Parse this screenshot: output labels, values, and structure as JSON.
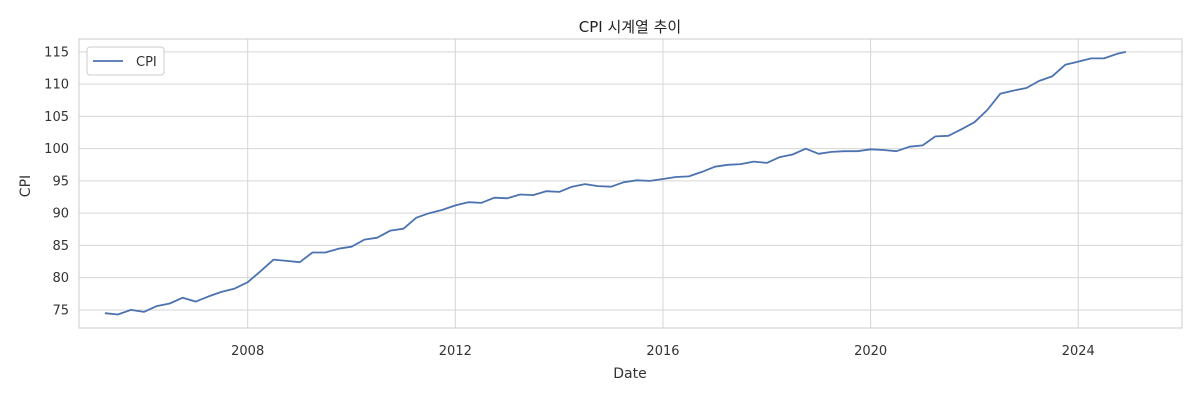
{
  "chart_data": {
    "type": "line",
    "title": "CPI 시계열 추이",
    "xlabel": "Date",
    "ylabel": "CPI",
    "x_range": [
      "2004-10-01",
      "2025-12-31"
    ],
    "ylim": [
      72.2,
      117
    ],
    "x_ticks": [
      {
        "date": "2008-01-01",
        "label": "2008"
      },
      {
        "date": "2012-01-01",
        "label": "2012"
      },
      {
        "date": "2016-01-01",
        "label": "2016"
      },
      {
        "date": "2020-01-01",
        "label": "2020"
      },
      {
        "date": "2024-01-01",
        "label": "2024"
      }
    ],
    "y_ticks": [
      75,
      80,
      85,
      90,
      95,
      100,
      105,
      110,
      115
    ],
    "grid": true,
    "legend": {
      "position": "top-left",
      "entries": [
        "CPI"
      ]
    },
    "series": [
      {
        "name": "CPI",
        "color": "#4c72b0",
        "points": [
          [
            "2005-04-01",
            74.5
          ],
          [
            "2005-07-01",
            74.3
          ],
          [
            "2005-10-01",
            75.0
          ],
          [
            "2006-01-01",
            74.7
          ],
          [
            "2006-04-01",
            75.6
          ],
          [
            "2006-07-01",
            76.0
          ],
          [
            "2006-10-01",
            76.9
          ],
          [
            "2007-01-01",
            76.3
          ],
          [
            "2007-04-01",
            77.1
          ],
          [
            "2007-07-01",
            77.8
          ],
          [
            "2007-10-01",
            78.3
          ],
          [
            "2008-01-01",
            79.3
          ],
          [
            "2008-04-01",
            81.0
          ],
          [
            "2008-07-01",
            82.8
          ],
          [
            "2008-10-01",
            82.6
          ],
          [
            "2009-01-01",
            82.4
          ],
          [
            "2009-04-01",
            83.9
          ],
          [
            "2009-07-01",
            83.9
          ],
          [
            "2009-10-01",
            84.5
          ],
          [
            "2010-01-01",
            84.8
          ],
          [
            "2010-04-01",
            85.9
          ],
          [
            "2010-07-01",
            86.2
          ],
          [
            "2010-10-01",
            87.3
          ],
          [
            "2011-01-01",
            87.6
          ],
          [
            "2011-04-01",
            89.3
          ],
          [
            "2011-07-01",
            90.0
          ],
          [
            "2011-10-01",
            90.5
          ],
          [
            "2012-01-01",
            91.2
          ],
          [
            "2012-04-01",
            91.7
          ],
          [
            "2012-07-01",
            91.6
          ],
          [
            "2012-10-01",
            92.4
          ],
          [
            "2013-01-01",
            92.3
          ],
          [
            "2013-04-01",
            92.9
          ],
          [
            "2013-07-01",
            92.8
          ],
          [
            "2013-10-01",
            93.4
          ],
          [
            "2014-01-01",
            93.3
          ],
          [
            "2014-04-01",
            94.1
          ],
          [
            "2014-07-01",
            94.5
          ],
          [
            "2014-10-01",
            94.2
          ],
          [
            "2015-01-01",
            94.1
          ],
          [
            "2015-04-01",
            94.8
          ],
          [
            "2015-07-01",
            95.1
          ],
          [
            "2015-10-01",
            95.0
          ],
          [
            "2016-01-01",
            95.3
          ],
          [
            "2016-04-01",
            95.6
          ],
          [
            "2016-07-01",
            95.7
          ],
          [
            "2016-10-01",
            96.4
          ],
          [
            "2017-01-01",
            97.2
          ],
          [
            "2017-04-01",
            97.5
          ],
          [
            "2017-07-01",
            97.6
          ],
          [
            "2017-10-01",
            98.0
          ],
          [
            "2018-01-01",
            97.8
          ],
          [
            "2018-04-01",
            98.7
          ],
          [
            "2018-07-01",
            99.1
          ],
          [
            "2018-10-01",
            100.0
          ],
          [
            "2019-01-01",
            99.2
          ],
          [
            "2019-04-01",
            99.5
          ],
          [
            "2019-07-01",
            99.6
          ],
          [
            "2019-10-01",
            99.6
          ],
          [
            "2020-01-01",
            99.9
          ],
          [
            "2020-04-01",
            99.8
          ],
          [
            "2020-07-01",
            99.6
          ],
          [
            "2020-10-01",
            100.3
          ],
          [
            "2021-01-01",
            100.5
          ],
          [
            "2021-04-01",
            101.9
          ],
          [
            "2021-07-01",
            102.0
          ],
          [
            "2021-10-01",
            103.0
          ],
          [
            "2022-01-01",
            104.1
          ],
          [
            "2022-04-01",
            106.0
          ],
          [
            "2022-07-01",
            108.5
          ],
          [
            "2022-10-01",
            109.0
          ],
          [
            "2023-01-01",
            109.4
          ],
          [
            "2023-04-01",
            110.5
          ],
          [
            "2023-07-01",
            111.2
          ],
          [
            "2023-10-01",
            113.0
          ],
          [
            "2024-01-01",
            113.5
          ],
          [
            "2024-04-01",
            114.0
          ],
          [
            "2024-07-01",
            114.0
          ],
          [
            "2024-10-01",
            114.7
          ],
          [
            "2024-12-01",
            115.0
          ]
        ]
      }
    ]
  }
}
